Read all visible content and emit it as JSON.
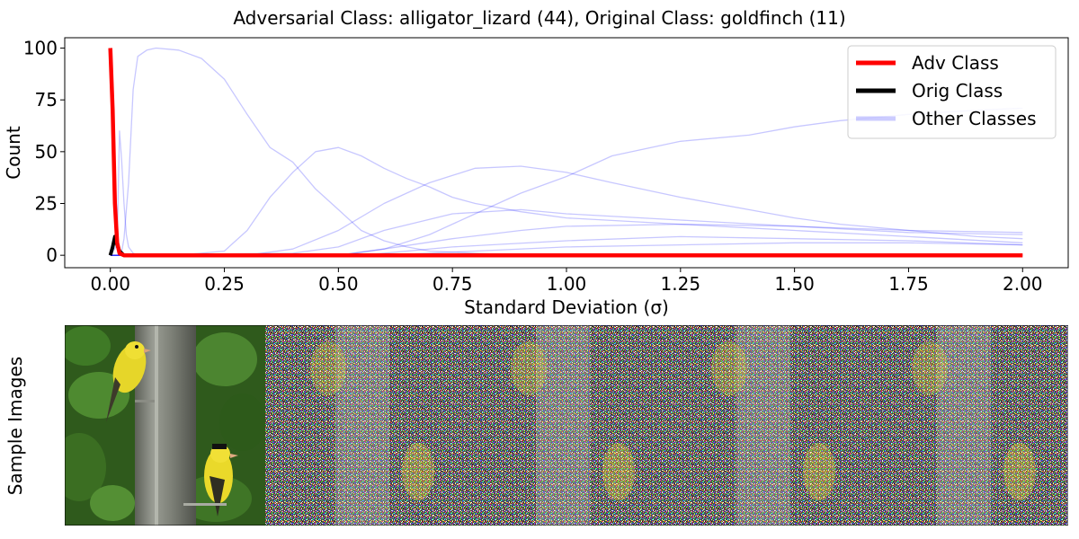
{
  "figure": {
    "title": "Adversarial Class: alligator_lizard (44), Original Class: goldfinch (11)",
    "images_ylabel": "Sample Images"
  },
  "chart_data": {
    "type": "line",
    "xlabel": "Standard Deviation (σ)",
    "ylabel": "Count",
    "xlim": [
      -0.1,
      2.1
    ],
    "ylim": [
      -6,
      105
    ],
    "xticks": [
      0.0,
      0.25,
      0.5,
      0.75,
      1.0,
      1.25,
      1.5,
      1.75,
      2.0
    ],
    "xtick_labels": [
      "0.00",
      "0.25",
      "0.50",
      "0.75",
      "1.00",
      "1.25",
      "1.50",
      "1.75",
      "2.00"
    ],
    "yticks": [
      0,
      25,
      50,
      75,
      100
    ],
    "ytick_labels": [
      "0",
      "25",
      "50",
      "75",
      "100"
    ],
    "grid": false,
    "legend_position": "top-right",
    "legend": [
      "Adv Class",
      "Orig Class",
      "Other Classes"
    ],
    "colors": {
      "adv": "#ff0000",
      "orig": "#000000",
      "other": "#0000ff"
    },
    "series": [
      {
        "name": "Adv Class",
        "role": "adv",
        "x": [
          0.0,
          0.005,
          0.01,
          0.015,
          0.02,
          0.03,
          0.04,
          0.06,
          0.1,
          0.5,
          1.0,
          1.5,
          2.0
        ],
        "y": [
          100,
          70,
          25,
          6,
          1,
          0,
          0,
          0,
          0,
          0,
          0,
          0,
          0
        ]
      },
      {
        "name": "Orig Class",
        "role": "orig",
        "x": [
          0.0,
          0.005,
          0.01,
          0.015,
          0.02,
          0.025,
          0.03,
          0.04
        ],
        "y": [
          0,
          4,
          9,
          5,
          2,
          1,
          0,
          0
        ]
      },
      {
        "name": "Other Classes",
        "role": "other",
        "x": [
          0.0,
          0.02,
          0.025,
          0.03,
          0.04,
          0.05,
          0.06,
          0.08,
          0.1,
          0.15,
          0.2,
          0.25,
          0.3,
          0.35,
          0.4,
          0.45,
          0.5,
          0.55,
          0.6,
          0.65,
          0.7,
          0.8,
          0.9,
          1.0,
          1.2,
          1.4,
          1.6,
          1.8,
          2.0
        ],
        "y": [
          0,
          0,
          2,
          8,
          35,
          80,
          96,
          99,
          100,
          99,
          95,
          85,
          68,
          52,
          45,
          32,
          22,
          12,
          7,
          4,
          2,
          1,
          0,
          0,
          0,
          0,
          0,
          0,
          0
        ]
      },
      {
        "name": "Other Classes",
        "role": "other",
        "x": [
          0.0,
          0.015,
          0.02,
          0.025,
          0.03,
          0.035,
          0.04,
          0.05,
          0.06,
          0.1,
          2.0
        ],
        "y": [
          0,
          5,
          60,
          45,
          25,
          10,
          4,
          1,
          0,
          0,
          0
        ]
      },
      {
        "name": "Other Classes",
        "role": "other",
        "x": [
          0.0,
          0.15,
          0.25,
          0.3,
          0.35,
          0.4,
          0.45,
          0.5,
          0.55,
          0.6,
          0.65,
          0.7,
          0.75,
          0.8,
          0.9,
          1.0,
          1.25,
          1.5,
          1.75,
          2.0
        ],
        "y": [
          0,
          0,
          2,
          12,
          28,
          40,
          50,
          52,
          48,
          42,
          37,
          33,
          28,
          25,
          21,
          18,
          15,
          12,
          9,
          6
        ]
      },
      {
        "name": "Other Classes",
        "role": "other",
        "x": [
          0.0,
          0.3,
          0.4,
          0.5,
          0.6,
          0.7,
          0.8,
          0.9,
          1.0,
          1.1,
          1.25,
          1.4,
          1.5,
          1.6,
          1.75,
          1.9,
          2.0
        ],
        "y": [
          0,
          0,
          3,
          12,
          25,
          35,
          42,
          43,
          40,
          35,
          28,
          22,
          18,
          15,
          12,
          9,
          8
        ]
      },
      {
        "name": "Other Classes",
        "role": "other",
        "x": [
          0.0,
          0.5,
          0.6,
          0.7,
          0.8,
          0.9,
          1.0,
          1.1,
          1.25,
          1.4,
          1.5,
          1.6,
          1.75,
          1.9,
          2.0
        ],
        "y": [
          0,
          0,
          3,
          10,
          20,
          30,
          38,
          48,
          55,
          58,
          62,
          65,
          68,
          70,
          71
        ]
      },
      {
        "name": "Other Classes",
        "role": "other",
        "x": [
          0.0,
          0.4,
          0.5,
          0.6,
          0.75,
          0.9,
          1.0,
          1.25,
          1.5,
          1.75,
          2.0
        ],
        "y": [
          0,
          1,
          4,
          12,
          20,
          22,
          20,
          17,
          14,
          11,
          10
        ]
      },
      {
        "name": "Other Classes",
        "role": "other",
        "x": [
          0.0,
          0.5,
          0.6,
          0.75,
          0.9,
          1.0,
          1.25,
          1.5,
          1.75,
          2.0
        ],
        "y": [
          0,
          0,
          3,
          8,
          12,
          14,
          15,
          14,
          12,
          11
        ]
      },
      {
        "name": "Other Classes",
        "role": "other",
        "x": [
          0.0,
          0.55,
          0.75,
          1.0,
          1.25,
          1.5,
          1.75,
          2.0
        ],
        "y": [
          0,
          0,
          4,
          7,
          9,
          8,
          7,
          5
        ]
      },
      {
        "name": "Other Classes",
        "role": "other",
        "x": [
          0.0,
          0.6,
          0.8,
          1.0,
          1.25,
          1.5,
          1.75,
          2.0
        ],
        "y": [
          0,
          0,
          2,
          4,
          5,
          6,
          6,
          5
        ]
      }
    ]
  },
  "sample_images": {
    "count": 5,
    "items": [
      {
        "kind": "clean"
      },
      {
        "kind": "noisy"
      },
      {
        "kind": "noisy"
      },
      {
        "kind": "noisy"
      },
      {
        "kind": "noisy"
      }
    ]
  }
}
